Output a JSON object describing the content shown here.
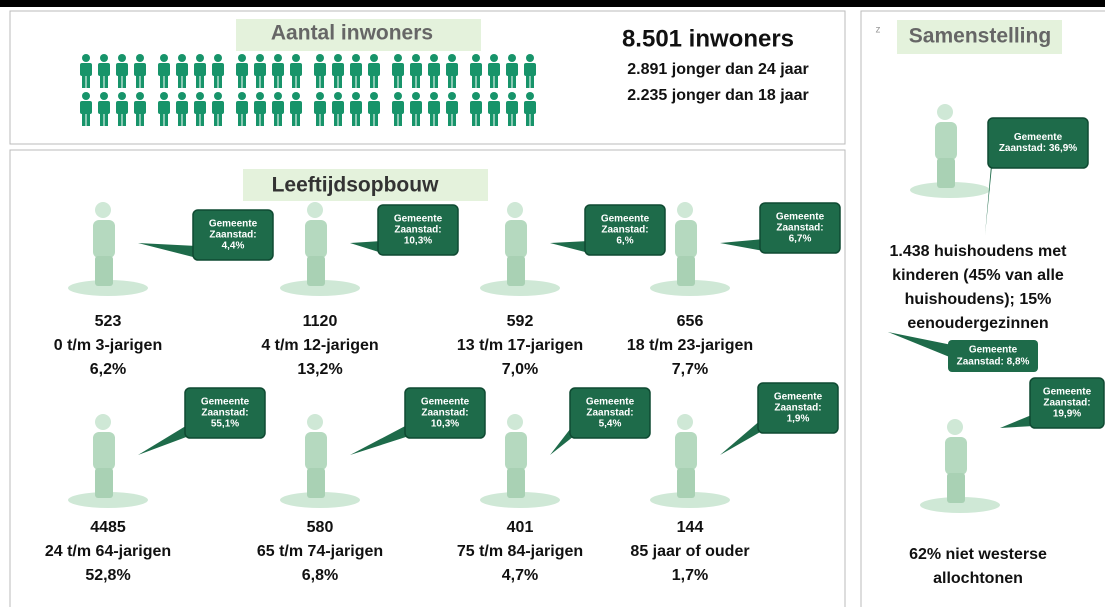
{
  "population": {
    "title": "Aantal inwoners",
    "total": "8.501 inwoners",
    "under_24": "2.891 jonger dan 24 jaar",
    "under_18": "2.235 jonger dan 18 jaar"
  },
  "age": {
    "title": "Leeftijdsopbouw",
    "groups": [
      {
        "count": "523",
        "label": "0 t/m 3-jarigen",
        "share": "6,2%",
        "bubble": [
          "Gemeente",
          "Zaanstad:",
          "4,4%"
        ]
      },
      {
        "count": "1120",
        "label": "4 t/m 12-jarigen",
        "share": "13,2%",
        "bubble": [
          "Gemeente",
          "Zaanstad:",
          "10,3%"
        ]
      },
      {
        "count": "592",
        "label": "13 t/m 17-jarigen",
        "share": "7,0%",
        "bubble": [
          "Gemeente",
          "Zaanstad:",
          "6,%"
        ]
      },
      {
        "count": "656",
        "label": "18 t/m 23-jarigen",
        "share": "7,7%",
        "bubble": [
          "Gemeente",
          "Zaanstad:",
          "6,7%"
        ]
      },
      {
        "count": "4485",
        "label": "24 t/m 64-jarigen",
        "share": "52,8%",
        "bubble": [
          "Gemeente",
          "Zaanstad:",
          "55,1%"
        ]
      },
      {
        "count": "580",
        "label": "65 t/m 74-jarigen",
        "share": "6,8%",
        "bubble": [
          "Gemeente",
          "Zaanstad:",
          "10,3%"
        ]
      },
      {
        "count": "401",
        "label": "75 t/m 84-jarigen",
        "share": "4,7%",
        "bubble": [
          "Gemeente",
          "Zaanstad:",
          "5,4%"
        ]
      },
      {
        "count": "144",
        "label": "85 jaar of ouder",
        "share": "1,7%",
        "bubble": [
          "Gemeente",
          "Zaanstad:",
          "1,9%"
        ]
      }
    ]
  },
  "composition": {
    "marker": "z",
    "title": "Samenstelling",
    "households_bubble": [
      "Gemeente",
      "Zaanstad: 36,9%"
    ],
    "households": [
      "1.438 huishoudens met",
      "kinderen (45% van alle",
      "huishoudens); 15%",
      "eenoudergezinnen"
    ],
    "single_parent_bubble": [
      "Gemeente",
      "Zaanstad: 8,8%"
    ],
    "migrant_bubble": [
      "Gemeente",
      "Zaanstad:",
      "19,9%"
    ],
    "migrants": [
      "62% niet westerse",
      "allochtonen"
    ]
  }
}
